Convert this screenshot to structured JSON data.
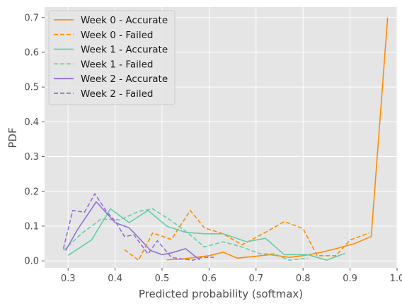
{
  "chart_data": {
    "type": "line",
    "title": "",
    "xlabel": "Predicted probability (softmax)",
    "ylabel": "PDF",
    "xlim": [
      0.25,
      1.0
    ],
    "ylim": [
      -0.02,
      0.73
    ],
    "xticks": [
      "0.3",
      "0.4",
      "0.5",
      "0.6",
      "0.7",
      "0.8",
      "0.9",
      "1.0"
    ],
    "yticks": [
      "0.0",
      "0.1",
      "0.2",
      "0.3",
      "0.4",
      "0.5",
      "0.6",
      "0.7"
    ],
    "grid": true,
    "legend_position": "top-left",
    "series": [
      {
        "name": "Week 0 - Accurate",
        "color": "#ff8c00",
        "dash": "solid",
        "x": [
          0.51,
          0.54,
          0.57,
          0.6,
          0.63,
          0.66,
          0.69,
          0.73,
          0.77,
          0.8,
          0.84,
          0.87,
          0.91,
          0.945,
          0.98
        ],
        "y": [
          0.003,
          0.005,
          0.01,
          0.015,
          0.025,
          0.008,
          0.012,
          0.018,
          0.01,
          0.015,
          0.025,
          0.035,
          0.05,
          0.07,
          0.7
        ]
      },
      {
        "name": "Week 0 - Failed",
        "color": "#ff8c00",
        "dash": "dashed",
        "x": [
          0.42,
          0.45,
          0.48,
          0.52,
          0.56,
          0.59,
          0.63,
          0.67,
          0.72,
          0.76,
          0.8,
          0.83,
          0.87,
          0.9,
          0.94
        ],
        "y": [
          0.032,
          0.002,
          0.08,
          0.062,
          0.145,
          0.095,
          0.078,
          0.046,
          0.082,
          0.113,
          0.093,
          0.015,
          0.015,
          0.06,
          0.08
        ]
      },
      {
        "name": "Week 1 - Accurate",
        "color": "#66cdaa",
        "dash": "solid",
        "x": [
          0.3,
          0.35,
          0.39,
          0.43,
          0.47,
          0.51,
          0.55,
          0.59,
          0.63,
          0.68,
          0.72,
          0.76,
          0.81,
          0.85,
          0.89
        ],
        "y": [
          0.016,
          0.06,
          0.15,
          0.11,
          0.145,
          0.1,
          0.082,
          0.078,
          0.078,
          0.055,
          0.065,
          0.018,
          0.018,
          0.002,
          0.022
        ]
      },
      {
        "name": "Week 1 - Failed",
        "color": "#66cdaa",
        "dash": "dashed",
        "x": [
          0.29,
          0.33,
          0.37,
          0.41,
          0.45,
          0.48,
          0.52,
          0.56,
          0.59,
          0.63,
          0.67,
          0.71,
          0.74,
          0.77,
          0.81
        ],
        "y": [
          0.03,
          0.08,
          0.12,
          0.118,
          0.142,
          0.15,
          0.115,
          0.075,
          0.04,
          0.055,
          0.04,
          0.02,
          0.02,
          0.002,
          0.008
        ]
      },
      {
        "name": "Week 2 - Accurate",
        "color": "#9370db",
        "dash": "solid",
        "x": [
          0.295,
          0.32,
          0.36,
          0.4,
          0.43,
          0.455,
          0.475,
          0.5,
          0.52,
          0.55,
          0.58
        ],
        "y": [
          0.03,
          0.09,
          0.17,
          0.11,
          0.095,
          0.06,
          0.03,
          0.018,
          0.023,
          0.035,
          0.003
        ]
      },
      {
        "name": "Week 2 - Failed",
        "color": "#9370db",
        "dash": "dashed",
        "x": [
          0.29,
          0.31,
          0.335,
          0.357,
          0.383,
          0.4,
          0.42,
          0.44,
          0.47,
          0.49,
          0.52,
          0.545,
          0.565,
          0.585,
          0.61
        ],
        "y": [
          0.035,
          0.145,
          0.14,
          0.193,
          0.14,
          0.115,
          0.07,
          0.075,
          0.02,
          0.058,
          0.01,
          0.005,
          0.002,
          0.01,
          0.01
        ]
      }
    ]
  }
}
